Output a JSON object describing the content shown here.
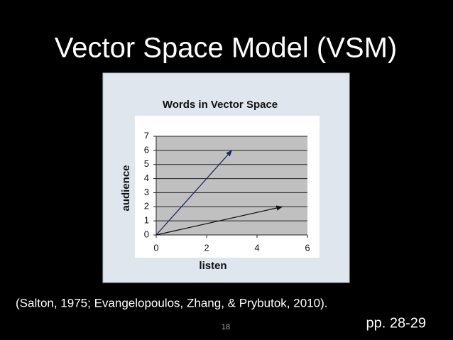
{
  "slide": {
    "title": "Vector Space Model (VSM)",
    "citation": "(Salton, 1975; Evangelopoulos, Zhang, & Prybutok, 2010).",
    "page_number": "18",
    "pages": "pp. 28-29"
  },
  "chart_data": {
    "type": "vector",
    "title": "Words in Vector Space",
    "x_label": "listen",
    "y_label": "audience",
    "series": [
      {
        "x": [
          0,
          3
        ],
        "values": [
          0,
          6
        ],
        "color": "#1f2a66"
      },
      {
        "x": [
          0,
          5
        ],
        "values": [
          0,
          2
        ],
        "color": "#111111"
      }
    ],
    "xlim": [
      0,
      6
    ],
    "xticks": [
      0,
      2,
      4,
      6
    ],
    "ylim": [
      0,
      7
    ],
    "yticks": [
      0,
      1,
      2,
      3,
      4,
      5,
      6,
      7
    ],
    "grid": true
  }
}
